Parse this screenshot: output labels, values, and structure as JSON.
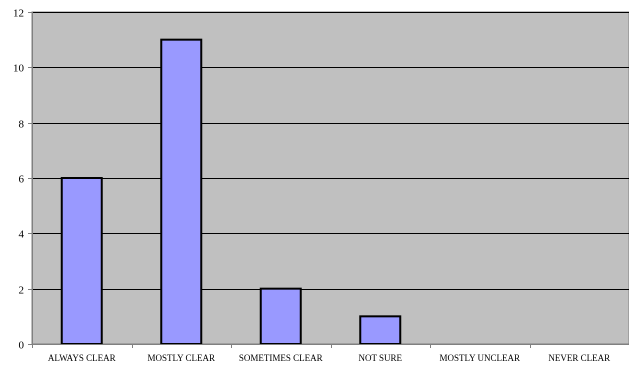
{
  "chart_data": {
    "type": "bar",
    "title": "",
    "xlabel": "",
    "ylabel": "",
    "categories": [
      "ALWAYS CLEAR",
      "MOSTLY CLEAR",
      "SOMETIMES CLEAR",
      "NOT SURE",
      "MOSTLY UNCLEAR",
      "NEVER CLEAR"
    ],
    "values": [
      6,
      11,
      2,
      1,
      0,
      0
    ],
    "ylim": [
      0,
      12
    ],
    "yticks": [
      0,
      2,
      4,
      6,
      8,
      10,
      12
    ],
    "grid": true,
    "legend": "none",
    "colors": {
      "plot_background": "#c0c0c0",
      "bar_fill": "#9999ff",
      "bar_stroke": "#000000",
      "gridline": "#000000",
      "axis": "#808080"
    }
  }
}
